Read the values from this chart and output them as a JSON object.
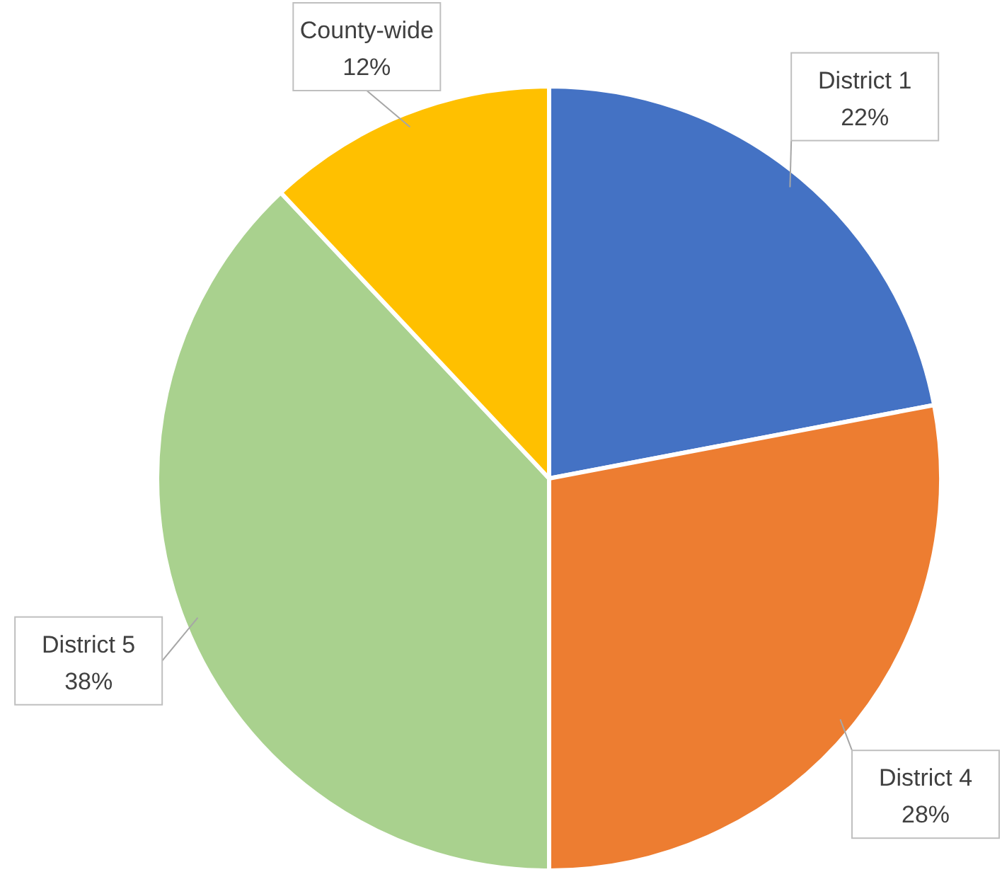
{
  "chart_data": {
    "type": "pie",
    "categories": [
      "District 1",
      "District 4",
      "District 5",
      "County-wide"
    ],
    "values": [
      22,
      28,
      38,
      12
    ],
    "value_labels": [
      "22%",
      "28%",
      "38%",
      "12%"
    ],
    "colors": [
      "#4472c4",
      "#ed7d31",
      "#a9d18e",
      "#ffc000"
    ]
  }
}
